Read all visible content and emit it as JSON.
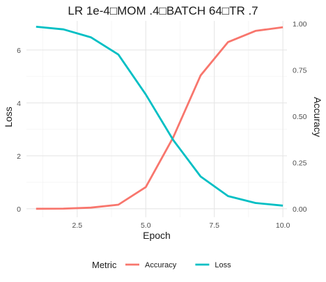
{
  "chart_data": {
    "type": "line",
    "title": "LR 1e-4□MOM .4□BATCH 64□TR .7",
    "xlabel": "Epoch",
    "ylabel": "Loss",
    "y2label": "Accuracy",
    "xlim": [
      0.65,
      10.15
    ],
    "ylim": [
      -0.32,
      7.1
    ],
    "y2lim": [
      -0.0457,
      1.0143
    ],
    "x_ticks": [
      2.5,
      5.0,
      7.5,
      10.0
    ],
    "x_tick_labels": [
      "2.5",
      "5.0",
      "7.5",
      "10.0"
    ],
    "y_ticks": [
      0,
      2,
      4,
      6
    ],
    "y_tick_labels": [
      "0",
      "2",
      "4",
      "6"
    ],
    "y2_ticks": [
      0,
      0.25,
      0.5,
      0.75,
      1.0
    ],
    "y2_tick_labels": [
      "0.00",
      "0.25",
      "0.50",
      "0.75",
      "1.00"
    ],
    "grid": true,
    "legend_placement": "bottom",
    "legend_title": "Metric",
    "x": [
      1,
      2,
      3,
      4,
      5,
      6,
      7,
      8,
      9,
      10
    ],
    "series": [
      {
        "name": "Accuracy",
        "axis": "right",
        "color": "#F8766D",
        "values": [
          0.0,
          0.001,
          0.006,
          0.022,
          0.117,
          0.385,
          0.72,
          0.9,
          0.96,
          0.98
        ]
      },
      {
        "name": "Loss",
        "axis": "left",
        "color": "#00BFC4",
        "values": [
          6.88,
          6.78,
          6.48,
          5.83,
          4.32,
          2.6,
          1.22,
          0.48,
          0.22,
          0.12
        ]
      }
    ]
  }
}
